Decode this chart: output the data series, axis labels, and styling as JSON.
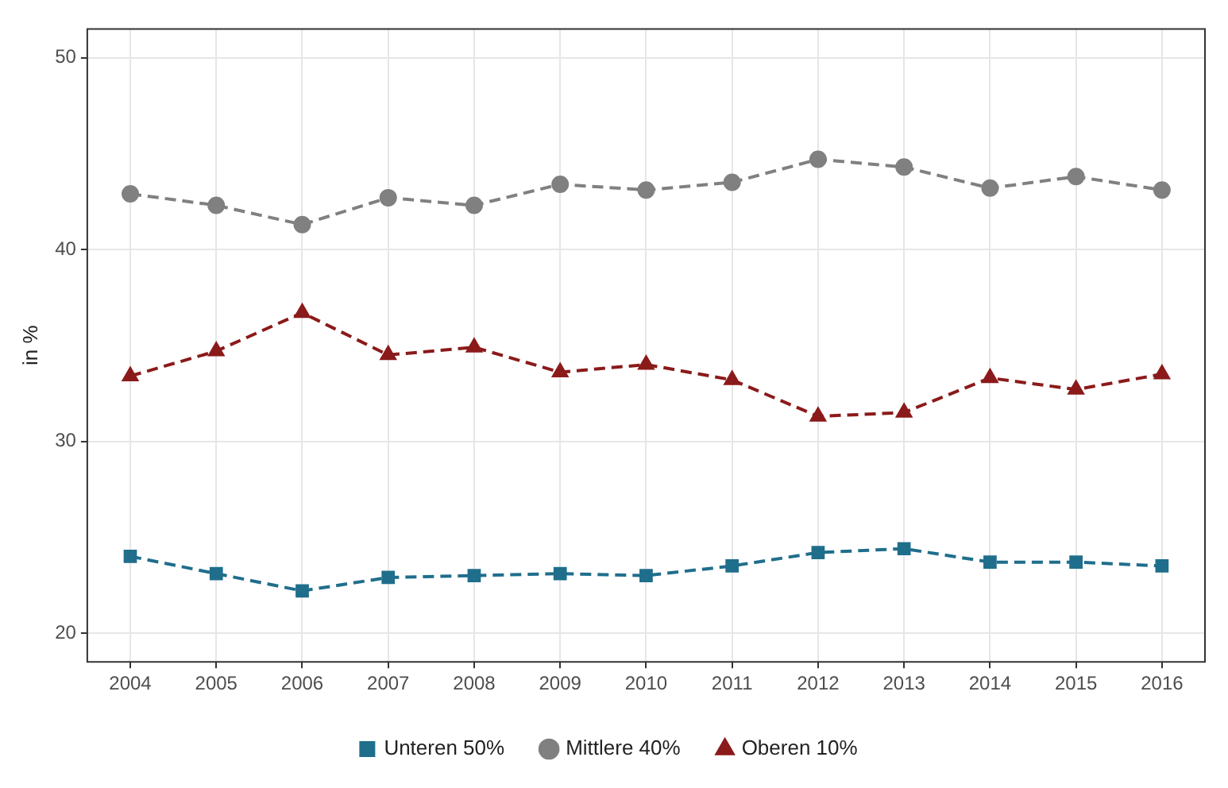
{
  "chart_data": {
    "type": "line",
    "ylabel": "in %",
    "categories": [
      "2004",
      "2005",
      "2006",
      "2007",
      "2008",
      "2009",
      "2010",
      "2011",
      "2012",
      "2013",
      "2014",
      "2015",
      "2016"
    ],
    "series": [
      {
        "name": "Unteren 50%",
        "color": "#1f6e8c",
        "marker": "square",
        "line_style": "dashed",
        "values": [
          24.0,
          23.1,
          22.2,
          22.9,
          23.0,
          23.1,
          23.0,
          23.5,
          24.2,
          24.4,
          23.7,
          23.7,
          23.5
        ]
      },
      {
        "name": "Mittlere 40%",
        "color": "#808080",
        "marker": "circle",
        "line_style": "dashed",
        "values": [
          42.9,
          42.3,
          41.3,
          42.7,
          42.3,
          43.4,
          43.1,
          43.5,
          44.7,
          44.3,
          43.2,
          43.8,
          43.1
        ]
      },
      {
        "name": "Oberen 10%",
        "color": "#8b1a1a",
        "marker": "triangle",
        "line_style": "dashed",
        "values": [
          33.4,
          34.7,
          36.7,
          34.5,
          34.9,
          33.6,
          34.0,
          33.2,
          31.3,
          31.5,
          33.3,
          32.7,
          33.5
        ]
      }
    ],
    "ylim": [
      18.5,
      51.5
    ],
    "yticks": [
      20,
      30,
      40,
      50
    ],
    "grid": true,
    "legend": "bottom"
  }
}
